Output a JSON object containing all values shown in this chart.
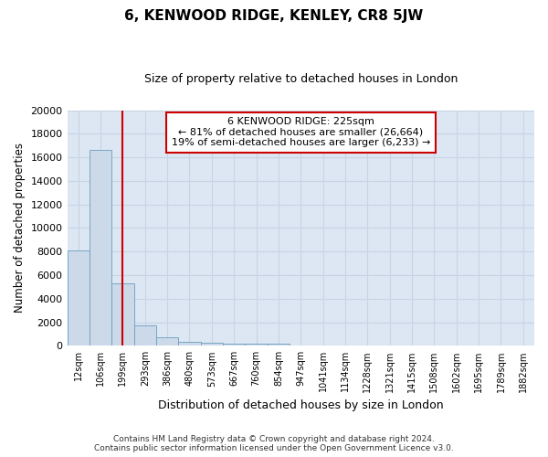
{
  "title": "6, KENWOOD RIDGE, KENLEY, CR8 5JW",
  "subtitle": "Size of property relative to detached houses in London",
  "xlabel": "Distribution of detached houses by size in London",
  "ylabel": "Number of detached properties",
  "categories": [
    "12sqm",
    "106sqm",
    "199sqm",
    "293sqm",
    "386sqm",
    "480sqm",
    "573sqm",
    "667sqm",
    "760sqm",
    "854sqm",
    "947sqm",
    "1041sqm",
    "1134sqm",
    "1228sqm",
    "1321sqm",
    "1415sqm",
    "1508sqm",
    "1602sqm",
    "1695sqm",
    "1789sqm",
    "1882sqm"
  ],
  "bar_values": [
    8100,
    16600,
    5300,
    1750,
    750,
    350,
    270,
    200,
    200,
    200,
    0,
    0,
    0,
    0,
    0,
    0,
    0,
    0,
    0,
    0,
    0
  ],
  "bar_color": "#ccd9e8",
  "bar_edge_color": "#6b9dc0",
  "property_line_x": 1.995,
  "property_line_color": "#cc0000",
  "ylim": [
    0,
    20000
  ],
  "yticks": [
    0,
    2000,
    4000,
    6000,
    8000,
    10000,
    12000,
    14000,
    16000,
    18000,
    20000
  ],
  "grid_color": "#c8d4e4",
  "bg_color": "#dde7f3",
  "annotation_text": "6 KENWOOD RIDGE: 225sqm\n← 81% of detached houses are smaller (26,664)\n19% of semi-detached houses are larger (6,233) →",
  "annotation_box_color": "#cc0000",
  "footer_line1": "Contains HM Land Registry data © Crown copyright and database right 2024.",
  "footer_line2": "Contains public sector information licensed under the Open Government Licence v3.0."
}
